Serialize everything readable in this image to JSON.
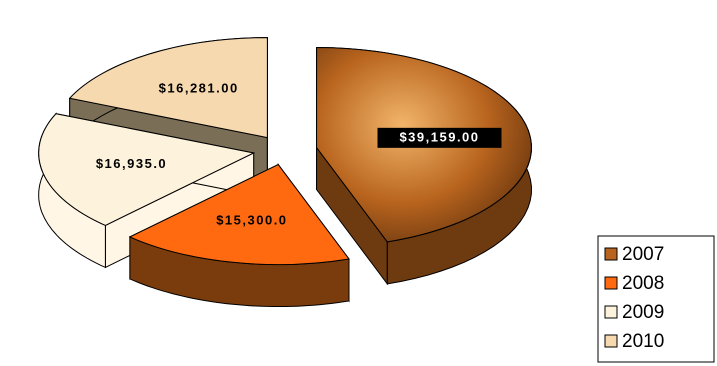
{
  "chart_data": {
    "type": "pie3d",
    "categories": [
      "2007",
      "2008",
      "2009",
      "2010"
    ],
    "values": [
      39159,
      15300,
      16935,
      16281
    ],
    "value_labels": [
      "$39,159.00",
      "$15,300.0",
      "$16,935.0",
      "$16,281.00"
    ],
    "colors": [
      "#b8641e",
      "#ff6a10",
      "#fdf3dc",
      "#f6d9ae"
    ]
  }
}
